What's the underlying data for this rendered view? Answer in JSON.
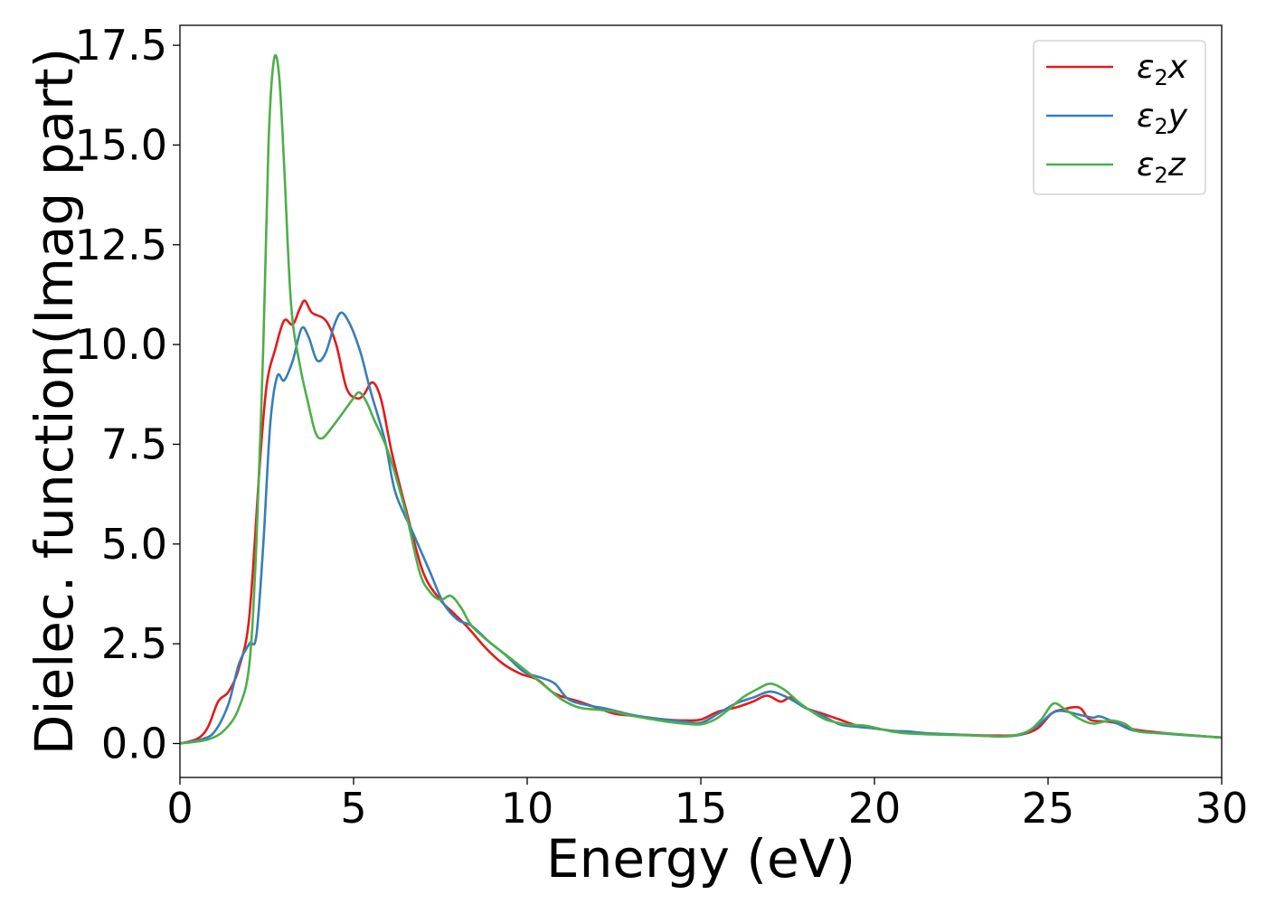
{
  "chart_data": {
    "type": "line",
    "title": "",
    "xlabel": "Energy (eV)",
    "ylabel": "Dielec. function(Imag part)",
    "xlim": [
      0,
      30
    ],
    "ylim": [
      -0.85,
      18.0
    ],
    "xticks": [
      0,
      5,
      10,
      15,
      20,
      25,
      30
    ],
    "xtick_labels": [
      "0",
      "5",
      "10",
      "15",
      "20",
      "25",
      "30"
    ],
    "yticks": [
      0.0,
      2.5,
      5.0,
      7.5,
      10.0,
      12.5,
      15.0,
      17.5
    ],
    "ytick_labels": [
      "0.0",
      "2.5",
      "5.0",
      "7.5",
      "10.0",
      "12.5",
      "15.0",
      "17.5"
    ],
    "grid": false,
    "legend_position": "top-right",
    "series": [
      {
        "name": "ε₂x",
        "legend_base": "ε",
        "legend_sub": "2",
        "legend_var": "x",
        "color": "#e41a1c",
        "points": [
          [
            0,
            0
          ],
          [
            0.5,
            0.12
          ],
          [
            0.8,
            0.4
          ],
          [
            1.1,
            1.05
          ],
          [
            1.4,
            1.3
          ],
          [
            1.7,
            1.9
          ],
          [
            2.0,
            3.2
          ],
          [
            2.3,
            7.0
          ],
          [
            2.5,
            9.0
          ],
          [
            2.75,
            9.9
          ],
          [
            3.0,
            10.6
          ],
          [
            3.25,
            10.5
          ],
          [
            3.45,
            10.9
          ],
          [
            3.6,
            11.1
          ],
          [
            3.8,
            10.8
          ],
          [
            4.2,
            10.6
          ],
          [
            4.5,
            10.0
          ],
          [
            4.8,
            8.9
          ],
          [
            5.1,
            8.65
          ],
          [
            5.3,
            8.75
          ],
          [
            5.55,
            9.05
          ],
          [
            5.8,
            8.6
          ],
          [
            6.1,
            7.3
          ],
          [
            6.5,
            5.9
          ],
          [
            7.0,
            4.3
          ],
          [
            7.5,
            3.6
          ],
          [
            7.9,
            3.25
          ],
          [
            8.3,
            2.9
          ],
          [
            8.8,
            2.4
          ],
          [
            9.3,
            2.0
          ],
          [
            9.8,
            1.75
          ],
          [
            10.3,
            1.6
          ],
          [
            10.8,
            1.25
          ],
          [
            11.5,
            1.05
          ],
          [
            12.0,
            0.9
          ],
          [
            12.5,
            0.75
          ],
          [
            13.0,
            0.7
          ],
          [
            13.5,
            0.65
          ],
          [
            14.0,
            0.6
          ],
          [
            14.5,
            0.58
          ],
          [
            15.0,
            0.6
          ],
          [
            15.5,
            0.8
          ],
          [
            16.0,
            0.9
          ],
          [
            16.5,
            1.05
          ],
          [
            16.9,
            1.2
          ],
          [
            17.3,
            1.05
          ],
          [
            17.6,
            1.15
          ],
          [
            18.0,
            0.9
          ],
          [
            18.5,
            0.75
          ],
          [
            19.0,
            0.6
          ],
          [
            19.5,
            0.45
          ],
          [
            20.0,
            0.38
          ],
          [
            20.5,
            0.32
          ],
          [
            21.0,
            0.28
          ],
          [
            21.5,
            0.25
          ],
          [
            22.5,
            0.22
          ],
          [
            23.5,
            0.2
          ],
          [
            24.2,
            0.22
          ],
          [
            24.7,
            0.38
          ],
          [
            25.1,
            0.75
          ],
          [
            25.4,
            0.85
          ],
          [
            25.9,
            0.9
          ],
          [
            26.2,
            0.6
          ],
          [
            26.7,
            0.55
          ],
          [
            27.0,
            0.5
          ],
          [
            27.5,
            0.35
          ],
          [
            28.5,
            0.25
          ],
          [
            29.5,
            0.18
          ],
          [
            30,
            0.15
          ]
        ]
      },
      {
        "name": "ε₂y",
        "legend_base": "ε",
        "legend_sub": "2",
        "legend_var": "y",
        "color": "#377eb8",
        "points": [
          [
            0,
            0
          ],
          [
            0.6,
            0.1
          ],
          [
            1.0,
            0.3
          ],
          [
            1.4,
            1.0
          ],
          [
            1.7,
            2.0
          ],
          [
            2.0,
            2.5
          ],
          [
            2.2,
            2.7
          ],
          [
            2.4,
            5.0
          ],
          [
            2.6,
            8.0
          ],
          [
            2.8,
            9.2
          ],
          [
            3.0,
            9.1
          ],
          [
            3.25,
            9.6
          ],
          [
            3.5,
            10.4
          ],
          [
            3.7,
            10.2
          ],
          [
            3.95,
            9.6
          ],
          [
            4.2,
            9.8
          ],
          [
            4.45,
            10.5
          ],
          [
            4.65,
            10.8
          ],
          [
            4.9,
            10.5
          ],
          [
            5.2,
            9.8
          ],
          [
            5.5,
            8.8
          ],
          [
            5.9,
            7.6
          ],
          [
            6.2,
            6.3
          ],
          [
            6.7,
            5.3
          ],
          [
            7.2,
            4.3
          ],
          [
            7.6,
            3.5
          ],
          [
            8.0,
            3.1
          ],
          [
            8.4,
            2.95
          ],
          [
            8.9,
            2.55
          ],
          [
            9.4,
            2.2
          ],
          [
            9.9,
            1.8
          ],
          [
            10.4,
            1.65
          ],
          [
            10.8,
            1.5
          ],
          [
            11.2,
            1.1
          ],
          [
            11.8,
            0.95
          ],
          [
            12.3,
            0.87
          ],
          [
            13.0,
            0.72
          ],
          [
            13.5,
            0.65
          ],
          [
            14.0,
            0.6
          ],
          [
            14.5,
            0.55
          ],
          [
            15.0,
            0.52
          ],
          [
            15.5,
            0.75
          ],
          [
            16.0,
            1.0
          ],
          [
            16.5,
            1.15
          ],
          [
            17.0,
            1.3
          ],
          [
            17.5,
            1.15
          ],
          [
            18.0,
            0.9
          ],
          [
            18.5,
            0.7
          ],
          [
            19.0,
            0.48
          ],
          [
            19.5,
            0.42
          ],
          [
            20.0,
            0.38
          ],
          [
            20.5,
            0.32
          ],
          [
            21.0,
            0.3
          ],
          [
            21.5,
            0.26
          ],
          [
            22.5,
            0.22
          ],
          [
            23.5,
            0.18
          ],
          [
            24.2,
            0.22
          ],
          [
            24.7,
            0.45
          ],
          [
            25.1,
            0.75
          ],
          [
            25.4,
            0.82
          ],
          [
            25.9,
            0.72
          ],
          [
            26.3,
            0.65
          ],
          [
            26.5,
            0.68
          ],
          [
            27.0,
            0.5
          ],
          [
            27.5,
            0.32
          ],
          [
            28.5,
            0.24
          ],
          [
            29.5,
            0.18
          ],
          [
            30,
            0.15
          ]
        ]
      },
      {
        "name": "ε₂z",
        "legend_base": "ε",
        "legend_sub": "2",
        "legend_var": "z",
        "color": "#4daf4a",
        "points": [
          [
            0,
            0
          ],
          [
            0.8,
            0.1
          ],
          [
            1.3,
            0.35
          ],
          [
            1.7,
            0.9
          ],
          [
            2.0,
            2.0
          ],
          [
            2.2,
            5.0
          ],
          [
            2.4,
            10.0
          ],
          [
            2.55,
            15.0
          ],
          [
            2.7,
            17.1
          ],
          [
            2.85,
            16.8
          ],
          [
            3.0,
            14.5
          ],
          [
            3.2,
            11.0
          ],
          [
            3.45,
            9.5
          ],
          [
            3.7,
            8.5
          ],
          [
            3.9,
            7.8
          ],
          [
            4.1,
            7.65
          ],
          [
            4.4,
            7.95
          ],
          [
            4.7,
            8.3
          ],
          [
            4.95,
            8.6
          ],
          [
            5.15,
            8.8
          ],
          [
            5.35,
            8.6
          ],
          [
            5.6,
            8.1
          ],
          [
            6.0,
            7.3
          ],
          [
            6.5,
            5.8
          ],
          [
            6.9,
            4.3
          ],
          [
            7.2,
            3.8
          ],
          [
            7.5,
            3.6
          ],
          [
            7.8,
            3.7
          ],
          [
            8.1,
            3.4
          ],
          [
            8.4,
            2.95
          ],
          [
            8.9,
            2.55
          ],
          [
            9.5,
            2.15
          ],
          [
            10.0,
            1.8
          ],
          [
            10.5,
            1.45
          ],
          [
            11.0,
            1.1
          ],
          [
            11.5,
            0.9
          ],
          [
            12.0,
            0.85
          ],
          [
            12.5,
            0.8
          ],
          [
            13.0,
            0.7
          ],
          [
            14.0,
            0.55
          ],
          [
            14.5,
            0.5
          ],
          [
            15.0,
            0.48
          ],
          [
            15.4,
            0.6
          ],
          [
            15.8,
            0.85
          ],
          [
            16.2,
            1.15
          ],
          [
            16.6,
            1.35
          ],
          [
            17.0,
            1.5
          ],
          [
            17.4,
            1.35
          ],
          [
            17.8,
            1.05
          ],
          [
            18.2,
            0.8
          ],
          [
            18.6,
            0.6
          ],
          [
            19.2,
            0.48
          ],
          [
            19.7,
            0.45
          ],
          [
            20.0,
            0.4
          ],
          [
            20.5,
            0.3
          ],
          [
            21.0,
            0.25
          ],
          [
            22.0,
            0.22
          ],
          [
            23.0,
            0.2
          ],
          [
            23.8,
            0.18
          ],
          [
            24.4,
            0.3
          ],
          [
            24.8,
            0.6
          ],
          [
            25.15,
            1.0
          ],
          [
            25.5,
            0.85
          ],
          [
            25.9,
            0.62
          ],
          [
            26.3,
            0.5
          ],
          [
            26.8,
            0.58
          ],
          [
            27.2,
            0.5
          ],
          [
            27.6,
            0.3
          ],
          [
            28.5,
            0.25
          ],
          [
            29.5,
            0.18
          ],
          [
            30,
            0.15
          ]
        ]
      }
    ]
  }
}
